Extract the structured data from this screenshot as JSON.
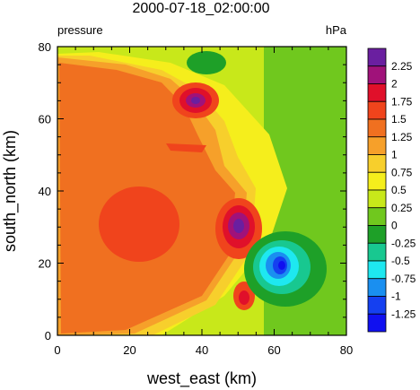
{
  "chart_data": {
    "type": "heatmap",
    "title": "2000-07-18_02:00:00",
    "left_string": "pressure",
    "right_string": "hPa",
    "xlabel": "west_east (km)",
    "ylabel": "south_north (km)",
    "xlim": [
      0,
      80
    ],
    "ylim": [
      0,
      80
    ],
    "x_ticks": [
      "0",
      "20",
      "40",
      "60",
      "80"
    ],
    "y_ticks": [
      "0",
      "20",
      "40",
      "60",
      "80"
    ],
    "colorbar": {
      "labels": [
        "2.25",
        "2",
        "1.75",
        "1.5",
        "1.25",
        "1",
        "0.75",
        "0.5",
        "0.25",
        "0",
        "-0.25",
        "-0.5",
        "-0.75",
        "-1",
        "-1.25"
      ],
      "colors": [
        "#6a1fa0",
        "#a0127a",
        "#e0102a",
        "#f0441c",
        "#f07020",
        "#f6a02a",
        "#f7cf2c",
        "#f5ee1c",
        "#c8e81a",
        "#70c81e",
        "#1ea028",
        "#18c890",
        "#1ee8f0",
        "#1a8ff0",
        "#1540f0",
        "#1010f0"
      ]
    },
    "features": [
      {
        "name": "broad positive region",
        "x": 25,
        "y": 40,
        "value": 1.25
      },
      {
        "name": "western core",
        "x": 22,
        "y": 31,
        "value": 1.5
      },
      {
        "name": "central maximum",
        "x": 50,
        "y": 29,
        "value": 2.25
      },
      {
        "name": "northern maximum",
        "x": 38,
        "y": 65,
        "value": 2.25
      },
      {
        "name": "northern negative patch",
        "x": 41,
        "y": 76,
        "value": -0.25
      },
      {
        "name": "minimum",
        "x": 62,
        "y": 19,
        "value": -1.25
      },
      {
        "name": "southern maximum",
        "x": 53,
        "y": 11,
        "value": 1.75
      }
    ]
  }
}
